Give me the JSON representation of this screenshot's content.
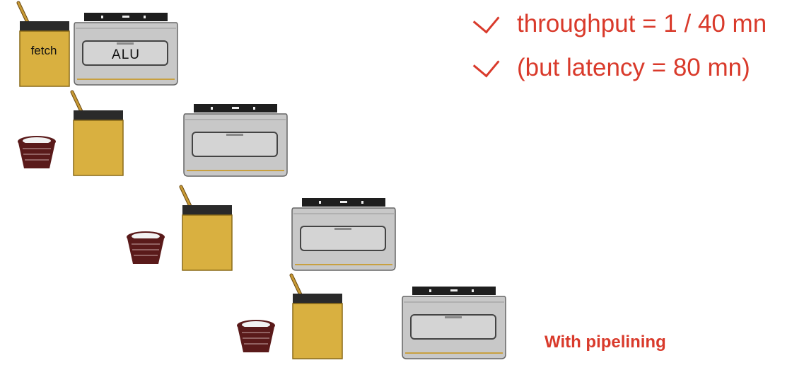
{
  "notes": [
    {
      "text": "throughput = 1 / 40 mn"
    },
    {
      "text": "(but latency = 80 mn)"
    }
  ],
  "stages": [
    {
      "washer_label": "fetch",
      "dryer_label": "ALU",
      "has_basket": false
    },
    {
      "washer_label": "",
      "dryer_label": "",
      "has_basket": true
    },
    {
      "washer_label": "",
      "dryer_label": "",
      "has_basket": true
    },
    {
      "washer_label": "",
      "dryer_label": "",
      "has_basket": true
    }
  ],
  "caption": "With pipelining",
  "colors": {
    "accent": "#d93a2b",
    "washer_body": "#d9b040",
    "dryer_body": "#c8c8c8",
    "basket": "#5a1a1a"
  }
}
